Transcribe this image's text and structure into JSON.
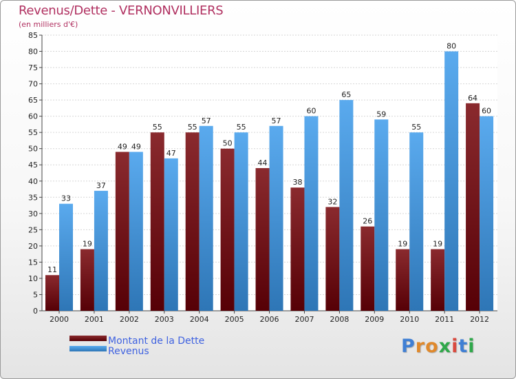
{
  "title": "Revenus/Dette - VERNONVILLIERS",
  "subtitle": "(en milliers d'€)",
  "colors": {
    "dette_top": "#8a2a2e",
    "dette_bottom": "#560006",
    "revenus_top": "#5aaaee",
    "revenus_bottom": "#2e76b6",
    "title": "#b03060",
    "legend_text": "#3f62e0"
  },
  "chart_data": {
    "type": "bar",
    "title": "Revenus/Dette - VERNONVILLIERS",
    "subtitle": "(en milliers d'€)",
    "xlabel": "",
    "ylabel": "",
    "ylim": [
      0,
      85
    ],
    "ytick_step": 5,
    "grid": true,
    "legend_position": "bottom-left",
    "categories": [
      "2000",
      "2001",
      "2002",
      "2003",
      "2004",
      "2005",
      "2006",
      "2007",
      "2008",
      "2009",
      "2010",
      "2011",
      "2012"
    ],
    "series": [
      {
        "name": "Montant de la Dette",
        "values": [
          11,
          19,
          49,
          55,
          55,
          50,
          44,
          38,
          32,
          26,
          19,
          19,
          64
        ]
      },
      {
        "name": "Revenus",
        "values": [
          33,
          37,
          49,
          47,
          57,
          55,
          57,
          60,
          65,
          59,
          55,
          80,
          60
        ]
      }
    ]
  },
  "legend": {
    "items": [
      {
        "label": "Montant de la Dette"
      },
      {
        "label": "Revenus"
      }
    ]
  },
  "logo": {
    "text": "Proxiti",
    "letters": [
      "P",
      "r",
      "o",
      "x",
      "i",
      "t",
      "i"
    ],
    "letter_colors": [
      "#3f7fd4",
      "#e0892b",
      "#e0892b",
      "#2fa84a",
      "#d94a3f",
      "#3f7fd4",
      "#2fa84a"
    ]
  }
}
